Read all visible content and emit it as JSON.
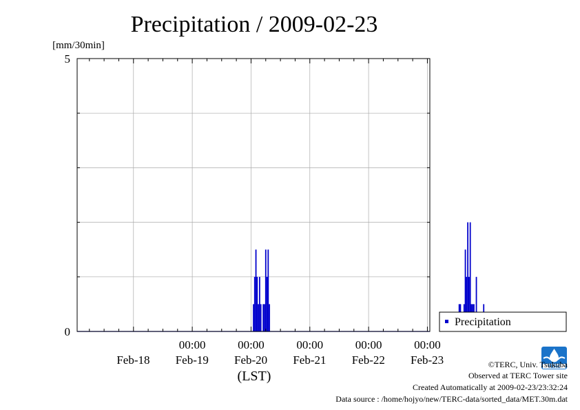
{
  "chart_data": {
    "type": "bar",
    "title": "Precipitation / 2009-02-23",
    "y_unit": "[mm/30min]",
    "ylim": [
      0,
      5
    ],
    "y_tick_labels": [
      "0",
      "5"
    ],
    "x_tick_time_label": "00:00",
    "x_date_labels": [
      "Feb-18",
      "Feb-19",
      "Feb-20",
      "Feb-21",
      "Feb-22",
      "Feb-23"
    ],
    "xlabel": "(LST)",
    "grid": true,
    "legend_position": "right",
    "series": [
      {
        "name": "Precipitation",
        "color": "#0000cc",
        "values": [
          {
            "x": "2009-02-20 01:00",
            "y": 0.5
          },
          {
            "x": "2009-02-20 01:30",
            "y": 1.0
          },
          {
            "x": "2009-02-20 02:00",
            "y": 1.5
          },
          {
            "x": "2009-02-20 02:30",
            "y": 1.0
          },
          {
            "x": "2009-02-20 03:00",
            "y": 0.5
          },
          {
            "x": "2009-02-20 03:30",
            "y": 1.0
          },
          {
            "x": "2009-02-20 04:00",
            "y": 0.5
          },
          {
            "x": "2009-02-20 05:00",
            "y": 0.5
          },
          {
            "x": "2009-02-20 05:30",
            "y": 0.5
          },
          {
            "x": "2009-02-20 06:00",
            "y": 1.5
          },
          {
            "x": "2009-02-20 06:30",
            "y": 1.0
          },
          {
            "x": "2009-02-20 07:00",
            "y": 1.5
          },
          {
            "x": "2009-02-20 07:30",
            "y": 0.5
          },
          {
            "x": "2009-02-23 13:00",
            "y": 0.5
          },
          {
            "x": "2009-02-23 13:30",
            "y": 0.5
          },
          {
            "x": "2009-02-23 15:00",
            "y": 0.5
          },
          {
            "x": "2009-02-23 15:30",
            "y": 1.5
          },
          {
            "x": "2009-02-23 16:00",
            "y": 1.0
          },
          {
            "x": "2009-02-23 16:30",
            "y": 2.0
          },
          {
            "x": "2009-02-23 17:00",
            "y": 1.0
          },
          {
            "x": "2009-02-23 17:30",
            "y": 2.0
          },
          {
            "x": "2009-02-23 18:00",
            "y": 0.5
          },
          {
            "x": "2009-02-23 18:30",
            "y": 0.5
          },
          {
            "x": "2009-02-23 19:00",
            "y": 0.5
          },
          {
            "x": "2009-02-23 20:00",
            "y": 1.0
          },
          {
            "x": "2009-02-23 23:00",
            "y": 0.5
          }
        ]
      }
    ]
  },
  "footer": {
    "copyright": "©TERC, Univ. Tsukuba",
    "observed": "Observed at TERC Tower site",
    "created": "Created Automatically at 2009-02-23/23:32:24",
    "source": "Data source : /home/hojyo/new/TERC-data/sorted_data/MET.30m.dat",
    "logo_text": "TERC"
  }
}
